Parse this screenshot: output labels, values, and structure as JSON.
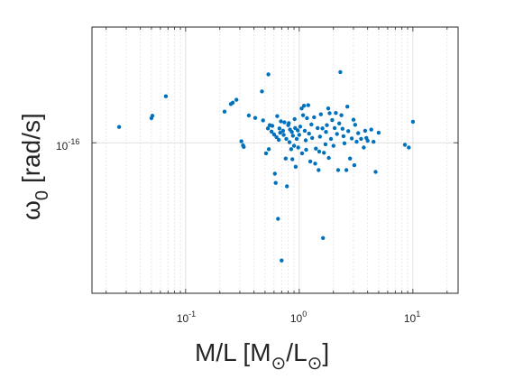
{
  "chart_data": {
    "type": "scatter",
    "xscale": "log",
    "yscale": "log",
    "xlim": [
      0.015,
      25
    ],
    "ylim": [
      5e-18,
      1e-15
    ],
    "grid": true,
    "xlabel": {
      "main": "M/L  [M",
      "sub1": "⊙",
      "mid": "/L",
      "sub2": "⊙",
      "end": "]"
    },
    "ylabel": {
      "main": "ω",
      "sub": "0",
      "unit": "[rad/s]"
    },
    "xticks": [
      {
        "value": 0.1,
        "base": "10",
        "exp": "-1"
      },
      {
        "value": 1,
        "base": "10",
        "exp": "0"
      },
      {
        "value": 10,
        "base": "10",
        "exp": "1"
      }
    ],
    "yticks": [
      {
        "value": 1e-16,
        "base": "10",
        "exp": "-16"
      }
    ],
    "marker_color": "#0072BD",
    "points": [
      {
        "x": 0.026,
        "y": 1.37e-16
      },
      {
        "x": 0.05,
        "y": 1.63e-16
      },
      {
        "x": 0.051,
        "y": 1.71e-16
      },
      {
        "x": 0.067,
        "y": 2.52e-16
      },
      {
        "x": 0.22,
        "y": 1.86e-16
      },
      {
        "x": 0.25,
        "y": 2.16e-16
      },
      {
        "x": 0.26,
        "y": 2.22e-16
      },
      {
        "x": 0.28,
        "y": 2.35e-16
      },
      {
        "x": 0.31,
        "y": 1.03e-16
      },
      {
        "x": 0.32,
        "y": 9.5e-17
      },
      {
        "x": 0.325,
        "y": 9.2e-17
      },
      {
        "x": 0.36,
        "y": 1.72e-16
      },
      {
        "x": 0.41,
        "y": 1.64e-16
      },
      {
        "x": 0.47,
        "y": 2.78e-16
      },
      {
        "x": 0.48,
        "y": 1.56e-16
      },
      {
        "x": 0.51,
        "y": 8.1e-17
      },
      {
        "x": 0.53,
        "y": 1.33e-16
      },
      {
        "x": 0.535,
        "y": 3.9e-16
      },
      {
        "x": 0.54,
        "y": 8.8e-17
      },
      {
        "x": 0.55,
        "y": 1.42e-16
      },
      {
        "x": 0.57,
        "y": 1.25e-16
      },
      {
        "x": 0.58,
        "y": 1.4e-16
      },
      {
        "x": 0.6,
        "y": 1.18e-16
      },
      {
        "x": 0.61,
        "y": 5.4e-17
      },
      {
        "x": 0.62,
        "y": 4.5e-17
      },
      {
        "x": 0.63,
        "y": 1.12e-16
      },
      {
        "x": 0.64,
        "y": 1.7e-16
      },
      {
        "x": 0.65,
        "y": 2.2e-17
      },
      {
        "x": 0.66,
        "y": 1.06e-16
      },
      {
        "x": 0.67,
        "y": 1.33e-16
      },
      {
        "x": 0.68,
        "y": 1.22e-16
      },
      {
        "x": 0.69,
        "y": 1.53e-16
      },
      {
        "x": 0.7,
        "y": 9.6e-18
      },
      {
        "x": 0.72,
        "y": 1.27e-16
      },
      {
        "x": 0.73,
        "y": 1.17e-16
      },
      {
        "x": 0.74,
        "y": 1.5e-16
      },
      {
        "x": 0.76,
        "y": 7.3e-17
      },
      {
        "x": 0.77,
        "y": 1.08e-16
      },
      {
        "x": 0.78,
        "y": 4.2e-17
      },
      {
        "x": 0.8,
        "y": 1.42e-16
      },
      {
        "x": 0.81,
        "y": 1.48e-16
      },
      {
        "x": 0.82,
        "y": 1.01e-16
      },
      {
        "x": 0.83,
        "y": 1.3e-16
      },
      {
        "x": 0.85,
        "y": 8.8e-17
      },
      {
        "x": 0.86,
        "y": 1.24e-16
      },
      {
        "x": 0.87,
        "y": 7.2e-17
      },
      {
        "x": 0.88,
        "y": 1.15e-16
      },
      {
        "x": 0.9,
        "y": 9.4e-17
      },
      {
        "x": 0.91,
        "y": 1.6e-16
      },
      {
        "x": 0.92,
        "y": 1.34e-16
      },
      {
        "x": 0.93,
        "y": 6.2e-17
      },
      {
        "x": 0.95,
        "y": 1.08e-16
      },
      {
        "x": 0.97,
        "y": 1.28e-16
      },
      {
        "x": 0.98,
        "y": 9.1e-17
      },
      {
        "x": 1.0,
        "y": 1.17e-16
      },
      {
        "x": 1.02,
        "y": 1.38e-16
      },
      {
        "x": 1.05,
        "y": 1.98e-16
      },
      {
        "x": 1.06,
        "y": 8.1e-17
      },
      {
        "x": 1.08,
        "y": 1.73e-16
      },
      {
        "x": 1.1,
        "y": 2.09e-16
      },
      {
        "x": 1.12,
        "y": 1.27e-16
      },
      {
        "x": 1.14,
        "y": 1.05e-16
      },
      {
        "x": 1.15,
        "y": 8.7e-17
      },
      {
        "x": 1.17,
        "y": 1.63e-16
      },
      {
        "x": 1.2,
        "y": 2.11e-16
      },
      {
        "x": 1.22,
        "y": 1.2e-16
      },
      {
        "x": 1.25,
        "y": 6.9e-17
      },
      {
        "x": 1.28,
        "y": 1.44e-16
      },
      {
        "x": 1.3,
        "y": 1.1e-16
      },
      {
        "x": 1.35,
        "y": 1.66e-16
      },
      {
        "x": 1.38,
        "y": 6.6e-17
      },
      {
        "x": 1.4,
        "y": 8.9e-17
      },
      {
        "x": 1.45,
        "y": 1.34e-16
      },
      {
        "x": 1.48,
        "y": 5.8e-17
      },
      {
        "x": 1.5,
        "y": 8.4e-17
      },
      {
        "x": 1.52,
        "y": 1.13e-16
      },
      {
        "x": 1.55,
        "y": 1.76e-16
      },
      {
        "x": 1.6,
        "y": 1.33e-16
      },
      {
        "x": 1.62,
        "y": 1.5e-17
      },
      {
        "x": 1.65,
        "y": 8.2e-17
      },
      {
        "x": 1.7,
        "y": 9.7e-17
      },
      {
        "x": 1.72,
        "y": 1.24e-16
      },
      {
        "x": 1.75,
        "y": 1.42e-16
      },
      {
        "x": 1.8,
        "y": 1.98e-16
      },
      {
        "x": 1.82,
        "y": 7.4e-17
      },
      {
        "x": 1.85,
        "y": 1.8e-16
      },
      {
        "x": 1.9,
        "y": 1.08e-16
      },
      {
        "x": 1.95,
        "y": 1.57e-16
      },
      {
        "x": 2.0,
        "y": 9.4e-17
      },
      {
        "x": 2.05,
        "y": 1.34e-16
      },
      {
        "x": 2.1,
        "y": 1.81e-16
      },
      {
        "x": 2.15,
        "y": 1.19e-16
      },
      {
        "x": 2.2,
        "y": 5.8e-17
      },
      {
        "x": 2.25,
        "y": 1.47e-16
      },
      {
        "x": 2.3,
        "y": 4.08e-16
      },
      {
        "x": 2.35,
        "y": 1.73e-16
      },
      {
        "x": 2.4,
        "y": 1.32e-16
      },
      {
        "x": 2.45,
        "y": 1.14e-16
      },
      {
        "x": 2.5,
        "y": 9.9e-17
      },
      {
        "x": 2.6,
        "y": 5.8e-17
      },
      {
        "x": 2.65,
        "y": 2.05e-16
      },
      {
        "x": 2.7,
        "y": 1.26e-16
      },
      {
        "x": 2.8,
        "y": 7.3e-17
      },
      {
        "x": 2.9,
        "y": 1.09e-16
      },
      {
        "x": 3.0,
        "y": 1.58e-16
      },
      {
        "x": 3.05,
        "y": 6.4e-17
      },
      {
        "x": 3.1,
        "y": 1.43e-16
      },
      {
        "x": 3.2,
        "y": 1.02e-16
      },
      {
        "x": 3.3,
        "y": 1.21e-16
      },
      {
        "x": 3.5,
        "y": 1.08e-16
      },
      {
        "x": 3.7,
        "y": 9.1e-17
      },
      {
        "x": 3.8,
        "y": 1.27e-16
      },
      {
        "x": 3.9,
        "y": 1.1e-16
      },
      {
        "x": 4.0,
        "y": 1.04e-16
      },
      {
        "x": 4.3,
        "y": 1.3e-16
      },
      {
        "x": 4.5,
        "y": 1.02e-16
      },
      {
        "x": 4.7,
        "y": 5.6e-17
      },
      {
        "x": 5.0,
        "y": 1.22e-16
      },
      {
        "x": 8.5,
        "y": 9.6e-17
      },
      {
        "x": 9.2,
        "y": 9.1e-17
      },
      {
        "x": 10.0,
        "y": 1.52e-16
      }
    ]
  }
}
